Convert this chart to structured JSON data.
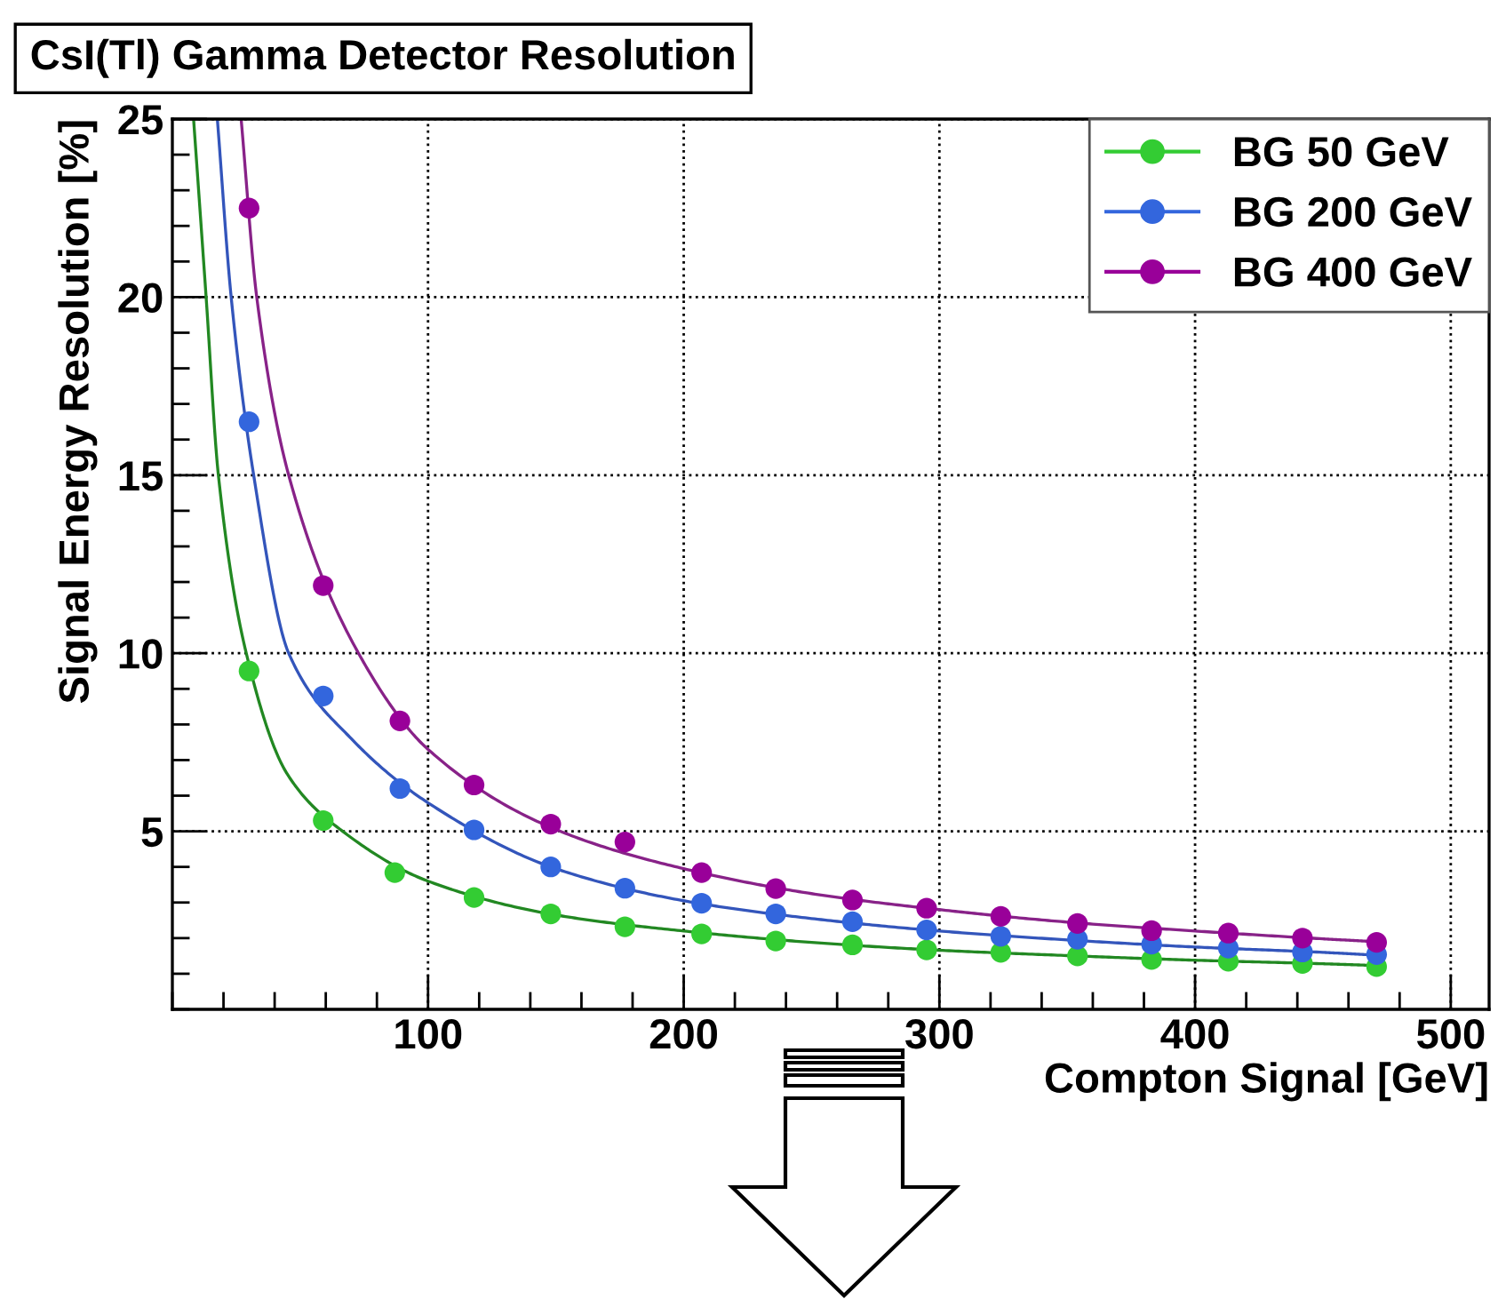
{
  "chart_data": {
    "type": "scatter",
    "title": "CsI(Tl) Gamma Detector Resolution",
    "xlabel": "Compton Signal [GeV]",
    "ylabel": "Signal Energy Resolution [%]",
    "xlim": [
      0,
      515
    ],
    "ylim": [
      0,
      25
    ],
    "xticks": [
      100,
      200,
      300,
      400,
      500
    ],
    "yticks": [
      5,
      10,
      15,
      20,
      25
    ],
    "grid": true,
    "legend": "top right",
    "series": [
      {
        "marker": "circle",
        "name": "BG 50 GeV",
        "color": "#33cc33",
        "x": [
          30,
          59,
          87,
          118,
          148,
          177,
          207,
          236,
          266,
          295,
          324,
          354,
          383,
          413,
          442,
          471
        ],
        "values": [
          9.5,
          5.3,
          3.84,
          3.14,
          2.68,
          2.32,
          2.12,
          1.92,
          1.81,
          1.67,
          1.6,
          1.5,
          1.4,
          1.35,
          1.29,
          1.2
        ]
      },
      {
        "marker": "circle",
        "name": "BG 200 GeV",
        "color": "#3366dd",
        "x": [
          30,
          59,
          89,
          118,
          148,
          177,
          207,
          236,
          266,
          295,
          324,
          354,
          383,
          413,
          442,
          471
        ],
        "values": [
          16.5,
          8.8,
          6.2,
          5.04,
          4.0,
          3.4,
          2.98,
          2.68,
          2.46,
          2.23,
          2.05,
          1.97,
          1.83,
          1.72,
          1.61,
          1.54
        ]
      },
      {
        "marker": "circle",
        "name": "BG 400 GeV",
        "color": "#990099",
        "x": [
          30,
          59,
          89,
          118,
          148,
          177,
          207,
          236,
          266,
          295,
          324,
          354,
          383,
          413,
          442,
          471
        ],
        "values": [
          22.5,
          11.9,
          8.1,
          6.3,
          5.2,
          4.7,
          3.84,
          3.39,
          3.07,
          2.84,
          2.61,
          2.41,
          2.21,
          2.14,
          2.0,
          1.88
        ]
      },
      {
        "type": "line",
        "color": "#228822",
        "x": [
          8.3,
          13.2,
          18,
          28.9,
          45,
          66.6,
          100,
          150,
          200,
          250,
          300,
          350,
          400,
          450,
          471
        ],
        "values": [
          25,
          20,
          15,
          10,
          6.6,
          5,
          3.6,
          2.65,
          2.2,
          1.88,
          1.66,
          1.51,
          1.38,
          1.28,
          1.23
        ]
      },
      {
        "type": "line",
        "color": "#3355bb",
        "x": [
          17.6,
          23,
          31.8,
          45.5,
          70,
          100,
          150,
          200,
          250,
          300,
          350,
          400,
          450,
          471
        ],
        "values": [
          25,
          20,
          15,
          10,
          7.6,
          5.8,
          3.95,
          3.05,
          2.55,
          2.2,
          1.95,
          1.75,
          1.6,
          1.52
        ]
      },
      {
        "type": "line",
        "color": "#882288",
        "x": [
          26.9,
          33,
          45.5,
          72.8,
          100,
          150,
          200,
          250,
          300,
          350,
          400,
          450,
          471
        ],
        "values": [
          25,
          20,
          15,
          10,
          7.3,
          5.05,
          3.95,
          3.25,
          2.8,
          2.45,
          2.2,
          1.98,
          1.9
        ]
      }
    ]
  }
}
